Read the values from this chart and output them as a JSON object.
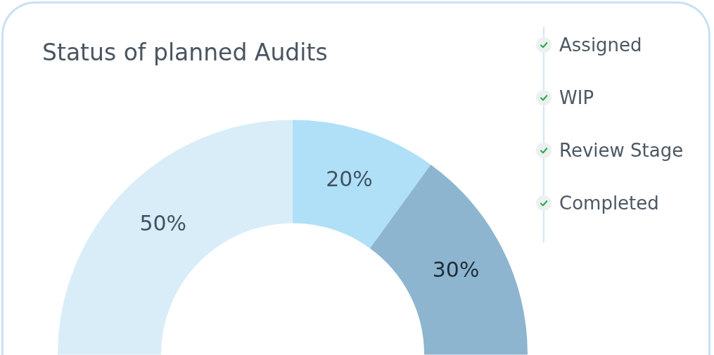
{
  "chart_data": {
    "type": "donut",
    "title": "Status of planned Audits",
    "categories": [
      null,
      null,
      null
    ],
    "values": [
      50,
      20,
      30
    ],
    "colors": [
      "#d9edf9",
      "#b0e0f7",
      "#8db5cf"
    ],
    "value_labels": [
      "50%",
      "20%",
      "30%"
    ],
    "annotations": [
      "Assigned",
      "WIP",
      "Review Stage",
      "Completed"
    ]
  }
}
